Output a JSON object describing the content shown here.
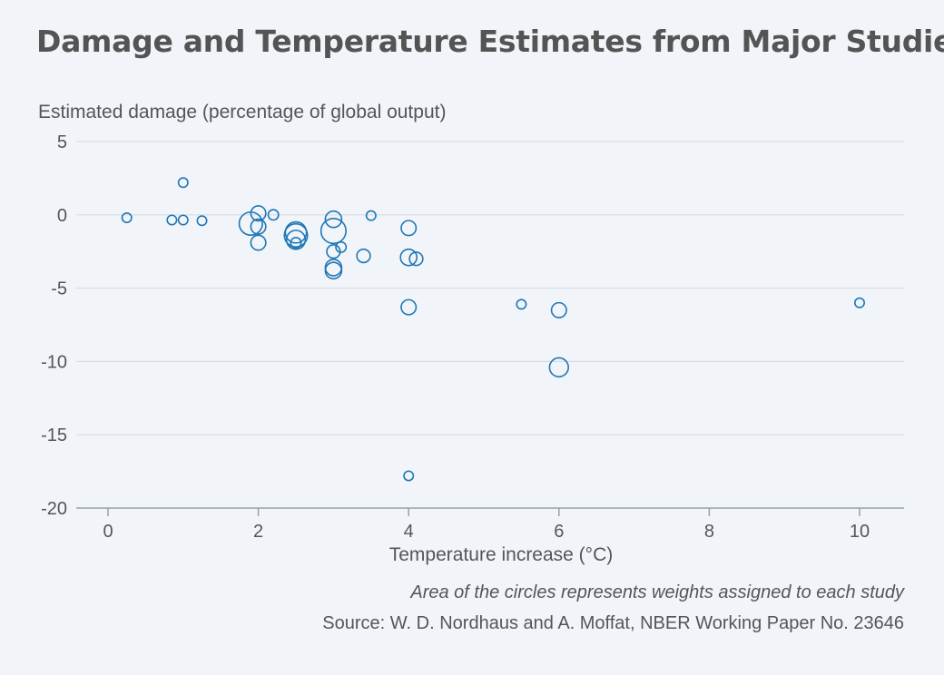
{
  "chart_data": {
    "type": "scatter",
    "title": "Damage and Temperature Estimates from Major Studies",
    "ylabel": "Estimated damage (percentage of global output)",
    "xlabel": "Temperature increase (°C)",
    "xlim": [
      -1.2,
      10.6
    ],
    "ylim": [
      -20,
      5
    ],
    "xticks": [
      0,
      2,
      4,
      6,
      8,
      10
    ],
    "yticks": [
      5,
      0,
      -5,
      -10,
      -15,
      -20
    ],
    "grid": "horizontal",
    "marker_color": "#1f77b4",
    "points": [
      {
        "x": 0.25,
        "y": -0.2,
        "size": 1
      },
      {
        "x": 0.85,
        "y": -0.35,
        "size": 1
      },
      {
        "x": 1.0,
        "y": 2.2,
        "size": 1
      },
      {
        "x": 1.0,
        "y": -0.35,
        "size": 1
      },
      {
        "x": 1.25,
        "y": -0.4,
        "size": 1
      },
      {
        "x": 1.9,
        "y": -0.6,
        "size": 6
      },
      {
        "x": 2.0,
        "y": 0.1,
        "size": 2.5
      },
      {
        "x": 2.0,
        "y": -0.8,
        "size": 2.5
      },
      {
        "x": 2.0,
        "y": -1.9,
        "size": 2.5
      },
      {
        "x": 2.2,
        "y": 0.0,
        "size": 1.2
      },
      {
        "x": 2.5,
        "y": -1.2,
        "size": 5
      },
      {
        "x": 2.5,
        "y": -1.4,
        "size": 6
      },
      {
        "x": 2.5,
        "y": -1.7,
        "size": 4
      },
      {
        "x": 2.5,
        "y": -1.9,
        "size": 1.2
      },
      {
        "x": 3.0,
        "y": -0.3,
        "size": 3
      },
      {
        "x": 3.0,
        "y": -1.1,
        "size": 7
      },
      {
        "x": 3.0,
        "y": -2.5,
        "size": 2
      },
      {
        "x": 3.0,
        "y": -3.6,
        "size": 3
      },
      {
        "x": 3.0,
        "y": -3.8,
        "size": 3
      },
      {
        "x": 3.1,
        "y": -2.2,
        "size": 1.2
      },
      {
        "x": 3.4,
        "y": -2.8,
        "size": 2
      },
      {
        "x": 3.5,
        "y": -0.05,
        "size": 1
      },
      {
        "x": 4.0,
        "y": -0.9,
        "size": 2.5
      },
      {
        "x": 4.0,
        "y": -2.9,
        "size": 3
      },
      {
        "x": 4.1,
        "y": -3.0,
        "size": 2
      },
      {
        "x": 4.0,
        "y": -6.3,
        "size": 2.5
      },
      {
        "x": 4.0,
        "y": -17.8,
        "size": 1
      },
      {
        "x": 5.5,
        "y": -6.1,
        "size": 1
      },
      {
        "x": 6.0,
        "y": -6.5,
        "size": 2.5
      },
      {
        "x": 6.0,
        "y": -10.4,
        "size": 4
      },
      {
        "x": 10.0,
        "y": -6.0,
        "size": 1
      }
    ]
  },
  "note": "Area of the circles represents weights assigned to each study",
  "source": "Source: W. D. Nordhaus and A. Moffat, NBER Working Paper No. 23646"
}
